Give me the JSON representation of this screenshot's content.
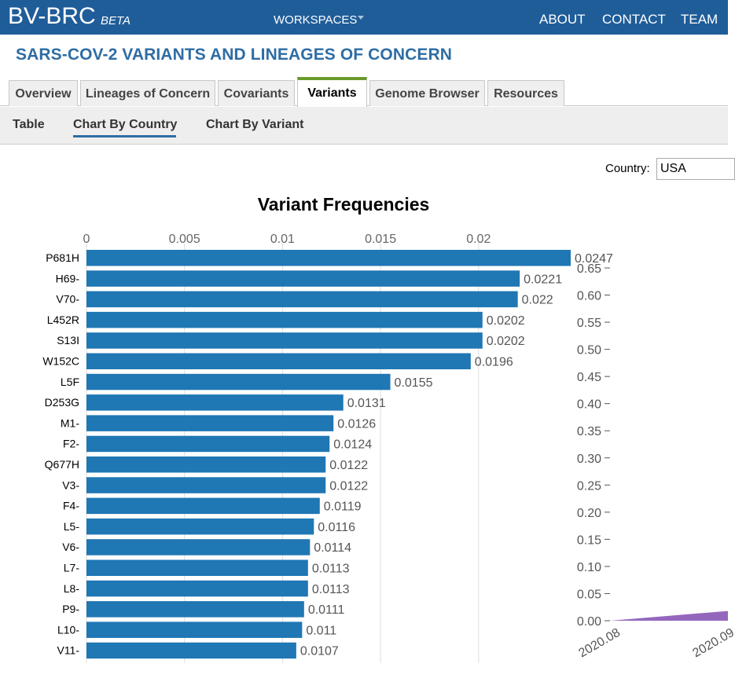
{
  "app": {
    "brand": "BV-BRC",
    "beta": "BETA",
    "workspaces": "WORKSPACES",
    "nav": [
      "ABOUT",
      "CONTACT",
      "TEAM"
    ]
  },
  "page_title": "SARS-COV-2 VARIANTS AND LINEAGES OF CONCERN",
  "tabs": [
    {
      "label": "Overview",
      "active": false
    },
    {
      "label": "Lineages of Concern",
      "active": false
    },
    {
      "label": "Covariants",
      "active": false
    },
    {
      "label": "Variants",
      "active": true
    },
    {
      "label": "Genome Browser",
      "active": false
    },
    {
      "label": "Resources",
      "active": false
    }
  ],
  "subtabs": [
    {
      "label": "Table",
      "active": false
    },
    {
      "label": "Chart By Country",
      "active": true
    },
    {
      "label": "Chart By Variant",
      "active": false
    }
  ],
  "country": {
    "label": "Country:",
    "value": "USA"
  },
  "colors": {
    "header": "#1f5d99",
    "bar": "#1f77b4",
    "area": "#9467bd",
    "accent_tab": "#6a9a2a"
  },
  "chart_data": [
    {
      "type": "bar",
      "orientation": "horizontal",
      "title": "Variant Frequencies",
      "categories": [
        "P681H",
        "H69-",
        "V70-",
        "L452R",
        "S13I",
        "W152C",
        "L5F",
        "D253G",
        "M1-",
        "F2-",
        "Q677H",
        "V3-",
        "F4-",
        "L5-",
        "V6-",
        "L7-",
        "L8-",
        "P9-",
        "L10-",
        "V11-"
      ],
      "values": [
        0.0247,
        0.0221,
        0.022,
        0.0202,
        0.0202,
        0.0196,
        0.0155,
        0.0131,
        0.0126,
        0.0124,
        0.0122,
        0.0122,
        0.0119,
        0.0116,
        0.0114,
        0.0113,
        0.0113,
        0.0111,
        0.011,
        0.0107
      ],
      "data_labels": [
        "0.0247",
        "0.0221",
        "0.022",
        "0.0202",
        "0.0202",
        "0.0196",
        "0.0155",
        "0.0131",
        "0.0126",
        "0.0124",
        "0.0122",
        "0.0122",
        "0.0119",
        "0.0116",
        "0.0114",
        "0.0113",
        "0.0113",
        "0.0111",
        "0.011",
        "0.0107"
      ],
      "x_ticks": [
        "0",
        "0.005",
        "0.01",
        "0.015",
        "0.02"
      ],
      "x_tick_values": [
        0,
        0.005,
        0.01,
        0.015,
        0.02
      ],
      "xlim": [
        0,
        0.0247
      ],
      "grid": true,
      "axis_position": "top"
    },
    {
      "type": "area",
      "y_ticks": [
        "0.00",
        "0.05",
        "0.10",
        "0.15",
        "0.20",
        "0.25",
        "0.30",
        "0.35",
        "0.40",
        "0.45",
        "0.50",
        "0.55",
        "0.60",
        "0.65"
      ],
      "y_tick_values": [
        0,
        0.05,
        0.1,
        0.15,
        0.2,
        0.25,
        0.3,
        0.35,
        0.4,
        0.45,
        0.5,
        0.55,
        0.6,
        0.65
      ],
      "ylim": [
        0,
        0.65
      ],
      "x_ticks": [
        "2020.08",
        "2020.09"
      ],
      "series": [
        {
          "x": [
            "2020.08",
            "2020.09"
          ],
          "values": [
            0.0,
            0.018
          ]
        }
      ]
    }
  ]
}
